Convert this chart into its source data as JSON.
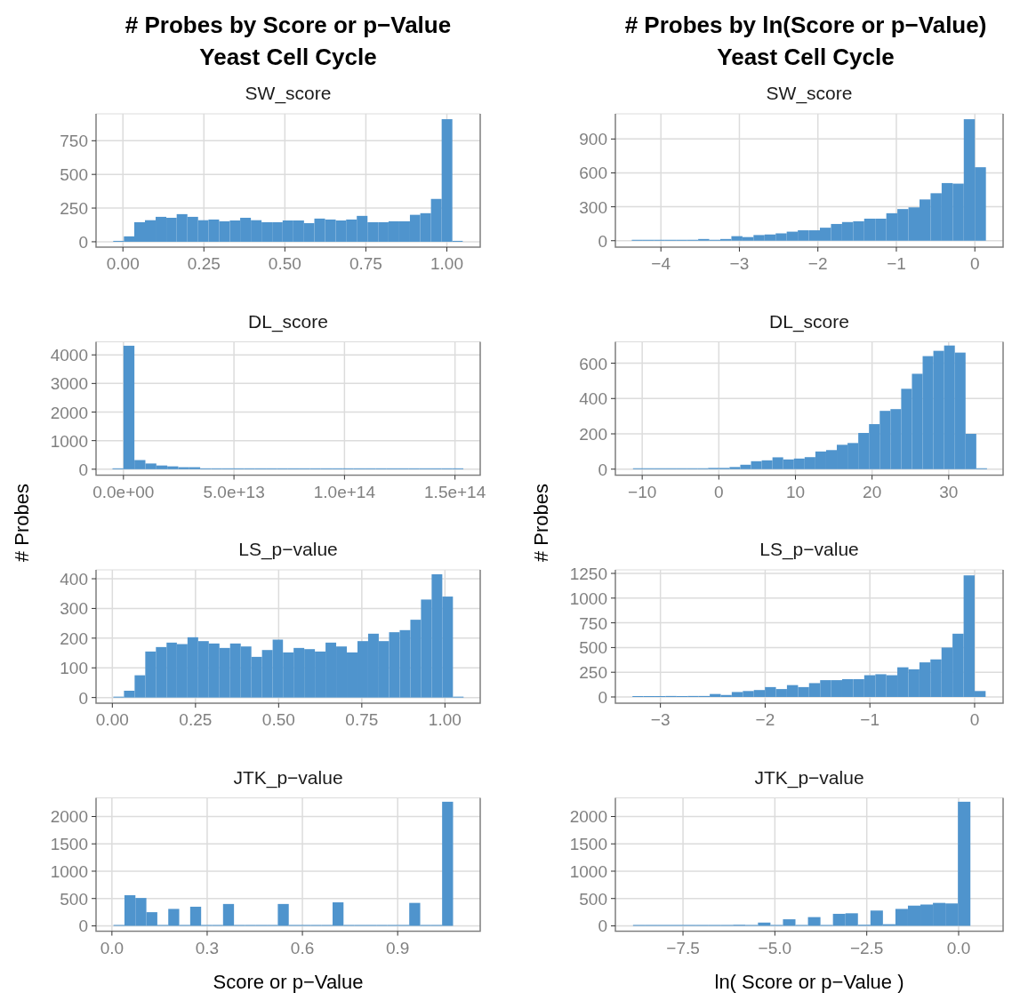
{
  "chart_data": [
    {
      "type": "histogram",
      "title": "# Probes by Score or p−Value\nYeast Cell Cycle",
      "subtitle": "SW_score",
      "color": "#4f94cd",
      "grid": true,
      "bins": [
        -0.03,
        0.003,
        0.035,
        0.068,
        0.101,
        0.134,
        0.166,
        0.199,
        0.232,
        0.264,
        0.297,
        0.33,
        0.362,
        0.395,
        0.428,
        0.461,
        0.493,
        0.526,
        0.559,
        0.591,
        0.624,
        0.657,
        0.689,
        0.722,
        0.755,
        0.788,
        0.82,
        0.853,
        0.886,
        0.918,
        0.951,
        0.984,
        1.017,
        1.049
      ],
      "values": [
        3,
        40,
        145,
        160,
        185,
        178,
        205,
        185,
        160,
        165,
        152,
        158,
        178,
        160,
        145,
        145,
        158,
        158,
        138,
        172,
        165,
        158,
        165,
        192,
        145,
        145,
        152,
        152,
        200,
        212,
        318,
        910,
        3
      ],
      "xlim": [
        -0.083,
        1.103
      ],
      "ylim": [
        -40,
        950
      ],
      "xticks": [
        {
          "value": 0,
          "label": "0.00"
        },
        {
          "value": 0.25,
          "label": "0.25"
        },
        {
          "value": 0.5,
          "label": "0.50"
        },
        {
          "value": 0.75,
          "label": "0.75"
        },
        {
          "value": 1,
          "label": "1.00"
        }
      ],
      "yticks": [
        0,
        250,
        500,
        750
      ]
    },
    {
      "type": "histogram",
      "title": "# Probes by ln(Score or p−Value)\nYeast Cell Cycle",
      "subtitle": "SW_score",
      "color": "#4f94cd",
      "grid": true,
      "bins": [
        -4.371,
        -4.23,
        -4.089,
        -3.948,
        -3.807,
        -3.666,
        -3.525,
        -3.384,
        -3.243,
        -3.102,
        -2.961,
        -2.82,
        -2.679,
        -2.538,
        -2.397,
        -2.256,
        -2.115,
        -1.974,
        -1.833,
        -1.692,
        -1.551,
        -1.41,
        -1.269,
        -1.128,
        -0.987,
        -0.846,
        -0.705,
        -0.564,
        -0.423,
        -0.282,
        -0.141,
        0,
        0.141
      ],
      "values": [
        2,
        5,
        5,
        5,
        2,
        8,
        15,
        8,
        15,
        40,
        32,
        50,
        55,
        65,
        80,
        92,
        92,
        115,
        148,
        165,
        172,
        195,
        195,
        243,
        280,
        295,
        365,
        420,
        510,
        505,
        1075,
        650
      ],
      "xlim": [
        -4.58,
        0.36
      ],
      "ylim": [
        -57,
        1123
      ],
      "xticks": [
        {
          "value": -4,
          "label": "−4"
        },
        {
          "value": -3,
          "label": "−3"
        },
        {
          "value": -2,
          "label": "−2"
        },
        {
          "value": -1,
          "label": "−1"
        },
        0
      ],
      "yticks": [
        0,
        300,
        600,
        900
      ]
    },
    {
      "type": "histogram",
      "subtitle": "DL_score",
      "color": "#4f94cd",
      "grid": true,
      "bins": [
        -4960000000000.0,
        0,
        4960000000000.0,
        9920000000000.0,
        14880000000000.0,
        19840000000000.0,
        24800000000000.0,
        29760000000000.0,
        34720000000000.0,
        39680000000000.0,
        44640000000000.0,
        49600000000000.0,
        54560000000000.0,
        59520000000000.0,
        64480000000000.0,
        69440000000000.0,
        74400000000000.0,
        79360000000000.0,
        84320000000000.0,
        89280000000000.0,
        94240000000000.0,
        99200000000000.0,
        104160000000000.0,
        109120000000000.0,
        114080000000000.0,
        119040000000000.0,
        124000000000000.0,
        128960000000000.0,
        133920000000000.0,
        138880000000000.0,
        143840000000000.0,
        148800000000000.0,
        153760000000000.0
      ],
      "values": [
        0,
        4320,
        320,
        200,
        130,
        100,
        70,
        70,
        30,
        30,
        30,
        30,
        30,
        30,
        30,
        0,
        0,
        0,
        0,
        0,
        0,
        0,
        0,
        0,
        0,
        0,
        0,
        0,
        0,
        0,
        0,
        0
      ],
      "xlim": [
        -12400000000000.0,
        161400000000000.0
      ],
      "ylim": [
        -208,
        4457
      ],
      "xticks": [
        {
          "value": 0,
          "label": "0.0e+00"
        },
        {
          "value": 50000000000000.0,
          "label": "5.0e+13"
        },
        {
          "value": 100000000000000.0,
          "label": "1.0e+14"
        },
        {
          "value": 150000000000000.0,
          "label": "1.5e+14"
        }
      ],
      "yticks": [
        0,
        1000,
        2000,
        3000,
        4000
      ]
    },
    {
      "type": "histogram",
      "subtitle": "DL_score",
      "color": "#4f94cd",
      "grid": true,
      "bins": [
        -11.2,
        -9.8,
        -8.4,
        -7.0,
        -5.6,
        -4.2,
        -2.8,
        -1.4,
        0,
        1.4,
        2.8,
        4.2,
        5.6,
        7.0,
        8.4,
        9.8,
        11.2,
        12.6,
        14.0,
        15.4,
        16.8,
        18.2,
        19.6,
        21.0,
        22.4,
        23.8,
        25.2,
        26.6,
        28.0,
        29.4,
        30.8,
        32.2,
        33.6,
        35.0
      ],
      "values": [
        1,
        1,
        1,
        1,
        1,
        1,
        5,
        7,
        7,
        12,
        25,
        45,
        50,
        67,
        55,
        60,
        68,
        100,
        108,
        138,
        148,
        205,
        255,
        330,
        340,
        455,
        540,
        640,
        670,
        700,
        660,
        200,
        2
      ],
      "xlim": [
        -13.5,
        37.1
      ],
      "ylim": [
        -34,
        721
      ],
      "xticks": [
        {
          "value": -10,
          "label": "−10"
        },
        0,
        10,
        20,
        30
      ],
      "yticks": [
        0,
        200,
        400,
        600
      ]
    },
    {
      "type": "histogram",
      "subtitle": "LS_p−value",
      "ylabel": "# Probes",
      "color": "#4f94cd",
      "grid": true,
      "bins": [
        0.003,
        0.035,
        0.067,
        0.099,
        0.131,
        0.163,
        0.194,
        0.226,
        0.258,
        0.29,
        0.322,
        0.354,
        0.386,
        0.418,
        0.45,
        0.482,
        0.513,
        0.545,
        0.577,
        0.609,
        0.641,
        0.673,
        0.705,
        0.737,
        0.769,
        0.801,
        0.832,
        0.864,
        0.896,
        0.928,
        0.96,
        0.992,
        1.024,
        1.056
      ],
      "values": [
        2,
        23,
        75,
        155,
        170,
        185,
        180,
        203,
        190,
        182,
        167,
        182,
        172,
        137,
        160,
        195,
        152,
        167,
        163,
        155,
        185,
        172,
        152,
        190,
        215,
        190,
        220,
        227,
        262,
        330,
        415,
        340,
        2
      ],
      "xlim": [
        -0.049,
        1.106
      ],
      "ylim": [
        -19,
        430
      ],
      "xticks": [
        {
          "value": 0,
          "label": "0.00"
        },
        {
          "value": 0.25,
          "label": "0.25"
        },
        {
          "value": 0.5,
          "label": "0.50"
        },
        {
          "value": 0.75,
          "label": "0.75"
        },
        {
          "value": 1,
          "label": "1.00"
        }
      ],
      "yticks": [
        0,
        100,
        200,
        300,
        400
      ]
    },
    {
      "type": "histogram",
      "subtitle": "LS_p−value",
      "ylabel": "# Probes",
      "color": "#4f94cd",
      "grid": true,
      "bins": [
        -3.267,
        -3.162,
        -3.056,
        -2.951,
        -2.846,
        -2.74,
        -2.635,
        -2.529,
        -2.424,
        -2.319,
        -2.213,
        -2.108,
        -2.002,
        -1.897,
        -1.792,
        -1.686,
        -1.581,
        -1.475,
        -1.37,
        -1.265,
        -1.159,
        -1.054,
        -0.948,
        -0.843,
        -0.738,
        -0.632,
        -0.527,
        -0.422,
        -0.316,
        -0.211,
        -0.105,
        0,
        0.105
      ],
      "values": [
        0,
        0,
        0,
        10,
        0,
        10,
        10,
        30,
        20,
        50,
        60,
        70,
        100,
        80,
        120,
        100,
        140,
        170,
        170,
        180,
        180,
        220,
        230,
        220,
        300,
        280,
        350,
        380,
        500,
        640,
        1230,
        60
      ],
      "xlim": [
        -3.43,
        0.272
      ],
      "ylim": [
        -63,
        1286
      ],
      "xticks": [
        {
          "value": -3,
          "label": "−3"
        },
        {
          "value": -2,
          "label": "−2"
        },
        {
          "value": -1,
          "label": "−1"
        },
        0
      ],
      "yticks": [
        0,
        250,
        500,
        750,
        1000,
        1250
      ]
    },
    {
      "type": "histogram",
      "subtitle": "JTK_p−value",
      "xlabel": "Score or p−Value",
      "color": "#4f94cd",
      "grid": true,
      "bins": [
        0.005,
        0.0395,
        0.074,
        0.1085,
        0.143,
        0.1775,
        0.212,
        0.2465,
        0.281,
        0.3155,
        0.35,
        0.3845,
        0.419,
        0.4535,
        0.488,
        0.5225,
        0.557,
        0.5915,
        0.626,
        0.6605,
        0.695,
        0.7295,
        0.764,
        0.7985,
        0.833,
        0.8675,
        0.902,
        0.9365,
        0.971,
        1.0055,
        1.04,
        1.0745
      ],
      "values": [
        0,
        560,
        510,
        250,
        0,
        310,
        0,
        350,
        0,
        0,
        400,
        0,
        0,
        0,
        0,
        400,
        0,
        0,
        0,
        0,
        430,
        0,
        0,
        0,
        0,
        0,
        0,
        420,
        0,
        0,
        2270
      ],
      "xlim": [
        -0.05,
        1.16
      ],
      "ylim": [
        -98,
        2341
      ],
      "xticks": [
        {
          "value": 0,
          "label": "0.0"
        },
        {
          "value": 0.3,
          "label": "0.3"
        },
        {
          "value": 0.6,
          "label": "0.6"
        },
        {
          "value": 0.9,
          "label": "0.9"
        }
      ],
      "yticks": [
        0,
        500,
        1000,
        1500,
        2000
      ]
    },
    {
      "type": "histogram",
      "subtitle": "JTK_p−value",
      "xlabel": "ln( Score or p−Value )",
      "color": "#4f94cd",
      "grid": true,
      "bins": [
        -8.86,
        -8.52,
        -8.18,
        -7.84,
        -7.5,
        -7.16,
        -6.82,
        -6.48,
        -6.14,
        -5.8,
        -5.46,
        -5.12,
        -4.78,
        -4.44,
        -4.1,
        -3.76,
        -3.42,
        -3.08,
        -2.74,
        -2.4,
        -2.06,
        -1.72,
        -1.38,
        -1.04,
        -0.7,
        -0.36,
        -0.02,
        0.32
      ],
      "values": [
        0,
        0,
        0,
        0,
        0,
        0,
        10,
        10,
        20,
        10,
        60,
        10,
        120,
        10,
        160,
        10,
        220,
        230,
        20,
        280,
        30,
        310,
        370,
        390,
        420,
        410,
        2270
      ],
      "xlim": [
        -9.34,
        1.21
      ],
      "ylim": [
        -98,
        2341
      ],
      "xticks": [
        {
          "value": -7.5,
          "label": "−7.5"
        },
        {
          "value": -5,
          "label": "−5.0"
        },
        {
          "value": -2.5,
          "label": "−2.5"
        },
        {
          "value": 0,
          "label": "0.0"
        }
      ],
      "yticks": [
        0,
        500,
        1000,
        1500,
        2000
      ]
    }
  ]
}
